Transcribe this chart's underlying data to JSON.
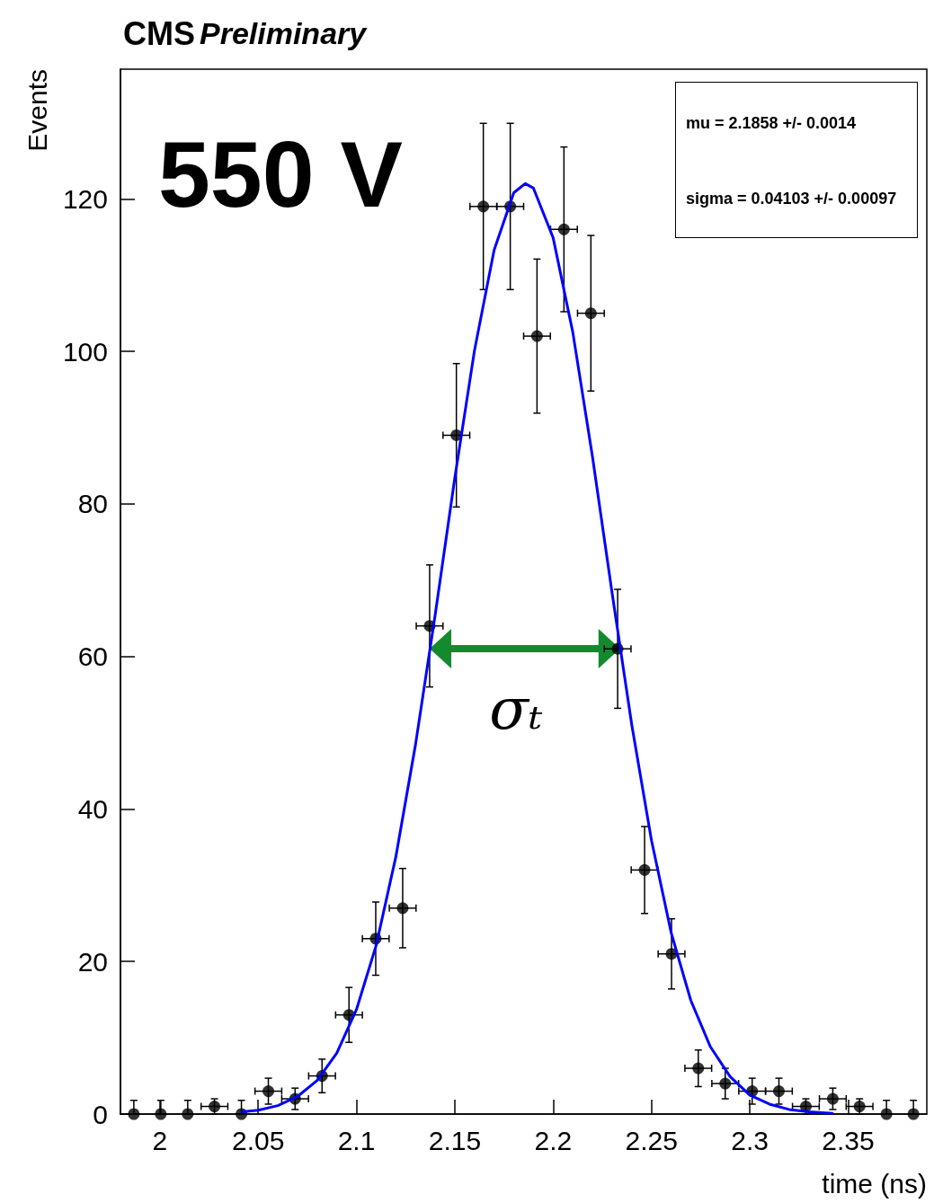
{
  "chart_data": {
    "type": "scatter",
    "title": "CMS",
    "subtitle": "Preliminary",
    "xlabel": "time (ns)",
    "ylabel": "Events",
    "xlim": [
      1.98,
      2.39
    ],
    "xticks": [
      2,
      2.05,
      2.1,
      2.15,
      2.2,
      2.25,
      2.3,
      2.35
    ],
    "ylim": [
      0,
      137
    ],
    "yticks": [
      0,
      20,
      40,
      60,
      80,
      100,
      120
    ],
    "grid": false,
    "annotations": [
      "550 V",
      "mu =  2.1858 +/- 0.0014",
      "sigma =  0.04103 +/- 0.00097",
      "σₜ"
    ],
    "series": [
      {
        "color": "#000000",
        "marker": "circle",
        "x": [
          1.9868,
          2.0005,
          2.0142,
          2.0278,
          2.0415,
          2.0552,
          2.0688,
          2.0825,
          2.0962,
          2.1098,
          2.1235,
          2.1372,
          2.1508,
          2.1645,
          2.1782,
          2.1918,
          2.2055,
          2.2192,
          2.2328,
          2.2465,
          2.2602,
          2.2738,
          2.2875,
          2.3012,
          2.3148,
          2.3285,
          2.3422,
          2.3558,
          2.3695,
          2.3832
        ],
        "values": [
          0,
          0,
          0,
          1,
          0,
          3,
          2,
          5,
          13,
          23,
          27,
          64,
          89,
          119,
          119,
          102,
          116,
          105,
          61,
          32,
          21,
          6,
          4,
          3,
          3,
          1,
          2,
          1,
          0,
          0
        ],
        "errors": [
          [
            0,
            1.8
          ],
          [
            0,
            1.8
          ],
          [
            0,
            1.8
          ],
          1,
          [
            0,
            1.8
          ],
          1.7,
          1.4,
          2.2,
          3.6,
          4.8,
          5.2,
          8,
          9.4,
          10.9,
          10.9,
          10.1,
          10.8,
          10.2,
          7.8,
          5.7,
          4.6,
          2.4,
          2,
          1.7,
          1.7,
          1,
          1.4,
          1,
          [
            0,
            1.8
          ],
          [
            0,
            1.8
          ]
        ],
        "xerrors": [
          null,
          null,
          null,
          0.0068,
          null,
          0.0068,
          0.0068,
          0.0068,
          0.0068,
          0.0068,
          0.0068,
          0.0068,
          0.0068,
          0.0068,
          0.0068,
          0.0068,
          0.0068,
          0.0068,
          0.0068,
          0.0068,
          0.0068,
          0.0068,
          0.0068,
          0.0068,
          0.0068,
          0.0068,
          0.0068,
          0.0068,
          null,
          null
        ]
      },
      {
        "type": "line",
        "color": "#0000ff",
        "marker": "none",
        "line_style": "solid",
        "x": [
          2.042,
          2.05,
          2.06,
          2.07,
          2.08,
          2.09,
          2.1,
          2.11,
          2.12,
          2.13,
          2.14,
          2.15,
          2.16,
          2.17,
          2.18,
          2.1858,
          2.19,
          2.2,
          2.21,
          2.22,
          2.23,
          2.24,
          2.25,
          2.26,
          2.27,
          2.28,
          2.29,
          2.3,
          2.31,
          2.32,
          2.33,
          2.342
        ],
        "values": [
          0.3,
          0.5,
          1.1,
          2.3,
          4.4,
          8,
          13.7,
          22.1,
          33.7,
          48.4,
          65.4,
          83.4,
          100.1,
          113.3,
          120.8,
          122,
          121.4,
          114.9,
          102.5,
          86.2,
          68.3,
          51,
          35.9,
          23.8,
          14.9,
          8.8,
          4.9,
          2.5,
          1.3,
          0.6,
          0.3,
          0.1
        ]
      }
    ]
  }
}
